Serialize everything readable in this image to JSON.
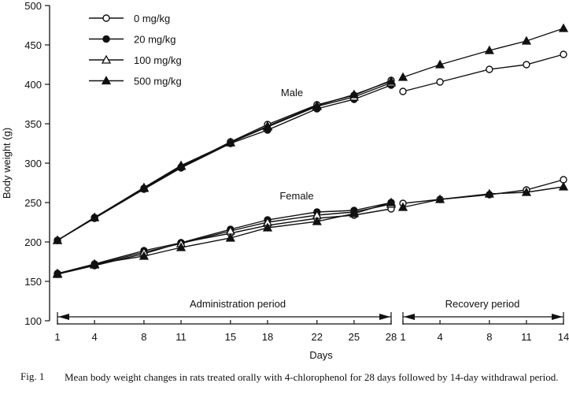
{
  "chart_data": {
    "type": "line",
    "title": "",
    "xlabel": "Days",
    "ylabel": "Body weight (g)",
    "ylim": [
      100,
      500
    ],
    "yticks": [
      100,
      150,
      200,
      250,
      300,
      350,
      400,
      450,
      500
    ],
    "grid": false,
    "legend_placement": "top-left",
    "periods": [
      {
        "name": "Administration period",
        "x": [
          1,
          4,
          8,
          11,
          15,
          18,
          22,
          25,
          28
        ]
      },
      {
        "name": "Recovery period",
        "x": [
          1,
          4,
          8,
          11,
          14
        ]
      }
    ],
    "annotations": [
      "Male",
      "Female"
    ],
    "series": [
      {
        "name": "0 mg/kg",
        "sex": "Male",
        "marker": "open-circle",
        "period": "Administration period",
        "values": [
          202,
          231,
          268,
          295,
          327,
          349,
          374,
          386,
          405
        ]
      },
      {
        "name": "20 mg/kg",
        "sex": "Male",
        "marker": "filled-circle",
        "period": "Administration period",
        "values": [
          202,
          230,
          267,
          294,
          325,
          342,
          369,
          381,
          399
        ]
      },
      {
        "name": "100 mg/kg",
        "sex": "Male",
        "marker": "open-triangle",
        "period": "Administration period",
        "values": [
          202,
          231,
          268,
          296,
          326,
          346,
          372,
          384,
          402
        ]
      },
      {
        "name": "500 mg/kg",
        "sex": "Male",
        "marker": "filled-triangle",
        "period": "Administration period",
        "values": [
          202,
          231,
          269,
          297,
          326,
          347,
          373,
          387,
          404
        ]
      },
      {
        "name": "0 mg/kg",
        "sex": "Male",
        "marker": "open-circle",
        "period": "Recovery period",
        "values": [
          391,
          403,
          419,
          425,
          438
        ]
      },
      {
        "name": "500 mg/kg",
        "sex": "Male",
        "marker": "filled-triangle",
        "period": "Recovery period",
        "values": [
          409,
          425,
          443,
          455,
          471
        ]
      },
      {
        "name": "0 mg/kg",
        "sex": "Female",
        "marker": "open-circle",
        "period": "Administration period",
        "values": [
          159,
          170,
          185,
          199,
          211,
          221,
          230,
          234,
          242
        ]
      },
      {
        "name": "20 mg/kg",
        "sex": "Female",
        "marker": "filled-circle",
        "period": "Administration period",
        "values": [
          160,
          172,
          189,
          199,
          216,
          228,
          238,
          240,
          250
        ]
      },
      {
        "name": "100 mg/kg",
        "sex": "Female",
        "marker": "open-triangle",
        "period": "Administration period",
        "values": [
          160,
          171,
          187,
          198,
          214,
          225,
          234,
          238,
          248
        ]
      },
      {
        "name": "500 mg/kg",
        "sex": "Female",
        "marker": "filled-triangle",
        "period": "Administration period",
        "values": [
          159,
          172,
          182,
          193,
          205,
          218,
          226,
          236,
          250
        ]
      },
      {
        "name": "0 mg/kg",
        "sex": "Female",
        "marker": "open-circle",
        "period": "Recovery period",
        "values": [
          249,
          254,
          260,
          266,
          279
        ]
      },
      {
        "name": "500 mg/kg",
        "sex": "Female",
        "marker": "filled-triangle",
        "period": "Recovery period",
        "values": [
          244,
          254,
          261,
          263,
          270
        ]
      }
    ],
    "legend": [
      {
        "label": "0 mg/kg",
        "marker": "open-circle"
      },
      {
        "label": "20 mg/kg",
        "marker": "filled-circle"
      },
      {
        "label": "100 mg/kg",
        "marker": "open-triangle"
      },
      {
        "label": "500 mg/kg",
        "marker": "filled-triangle"
      }
    ]
  },
  "caption": {
    "figure_label": "Fig. 1",
    "text": "Mean body weight changes in rats treated orally with 4-chlorophenol for 28 days followed by 14-day withdrawal period."
  }
}
